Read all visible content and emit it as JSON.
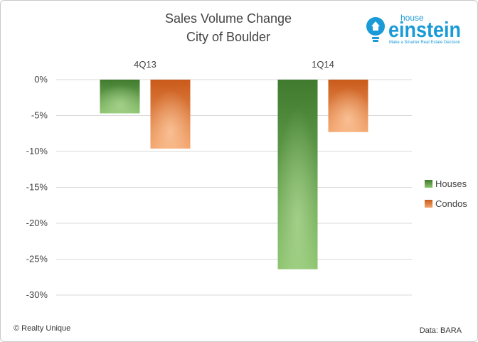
{
  "chart_data": {
    "type": "bar",
    "title": "Sales Volume Change",
    "subtitle": "City of Boulder",
    "categories": [
      "4Q13",
      "1Q14"
    ],
    "series": [
      {
        "name": "Houses",
        "values": [
          -4.7,
          -26.4
        ]
      },
      {
        "name": "Condos",
        "values": [
          -9.6,
          -7.3
        ]
      }
    ],
    "ylim": [
      -30,
      0
    ],
    "yticks": [
      0,
      -5,
      -10,
      -15,
      -20,
      -25,
      -30
    ],
    "ytick_labels": [
      "0%",
      "-5%",
      "-10%",
      "-15%",
      "-20%",
      "-25%",
      "-30%"
    ],
    "grid": true,
    "legend": "right",
    "category_axis": "top",
    "colors": {
      "Houses": {
        "dark": "#3f7a2e",
        "light": "#8cc46e"
      },
      "Condos": {
        "dark": "#c95a1a",
        "light": "#f3a46c"
      }
    }
  },
  "logo": {
    "small": "house",
    "big": "einstein",
    "tagline": "Make a Smarter Real Estate Decision",
    "icon": "lightbulb-icon",
    "color": "#1a9ad6"
  },
  "footer": {
    "left": "© Realty Unique",
    "right": "Data: BARA"
  }
}
